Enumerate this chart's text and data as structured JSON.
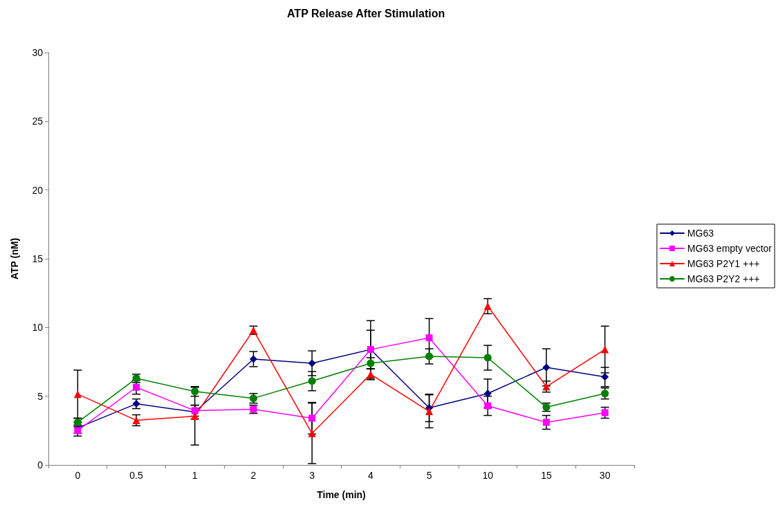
{
  "chart_data": {
    "type": "line",
    "title": "ATP Release After Stimulation",
    "xlabel": "Time (min)",
    "ylabel": "ATP (nM)",
    "categories": [
      "0",
      "0.5",
      "1",
      "2",
      "3",
      "4",
      "5",
      "10",
      "15",
      "30"
    ],
    "ylim": [
      0,
      30
    ],
    "yticks": [
      0,
      5,
      10,
      15,
      20,
      25,
      30
    ],
    "grid": false,
    "legend": "right",
    "series": [
      {
        "name": "MG63",
        "color": "#000080",
        "marker": "diamond",
        "values": [
          2.7,
          4.45,
          3.85,
          7.7,
          7.4,
          8.4,
          4.15,
          5.2,
          7.1,
          6.4
        ],
        "errors": [
          0.4,
          0.35,
          0.5,
          0.55,
          0.9,
          2.1,
          1.0,
          1.05,
          1.35,
          0.7
        ]
      },
      {
        "name": "MG63 empty vector",
        "color": "#ff00ff",
        "marker": "square",
        "values": [
          2.5,
          5.65,
          3.95,
          4.05,
          3.4,
          8.4,
          9.25,
          4.3,
          3.1,
          3.8
        ],
        "errors": [
          0.4,
          0.5,
          0.4,
          0.3,
          1.15,
          1.4,
          1.4,
          0.7,
          0.5,
          0.4
        ]
      },
      {
        "name": "MG63 P2Y1 +++",
        "color": "#ff0000",
        "marker": "triangle",
        "values": [
          5.15,
          3.25,
          3.55,
          9.8,
          2.3,
          6.6,
          3.9,
          11.55,
          5.7,
          8.4
        ],
        "errors": [
          1.75,
          0.4,
          2.1,
          0.3,
          2.2,
          0.4,
          1.2,
          0.55,
          0.4,
          1.7
        ]
      },
      {
        "name": "MG63 P2Y2 +++",
        "color": "#008000",
        "marker": "circle",
        "values": [
          3.1,
          6.3,
          5.35,
          4.85,
          6.1,
          7.4,
          7.9,
          7.8,
          4.2,
          5.2
        ],
        "errors": [
          0.3,
          0.3,
          0.35,
          0.35,
          0.7,
          0.4,
          0.55,
          0.9,
          0.3,
          0.4
        ]
      }
    ]
  }
}
